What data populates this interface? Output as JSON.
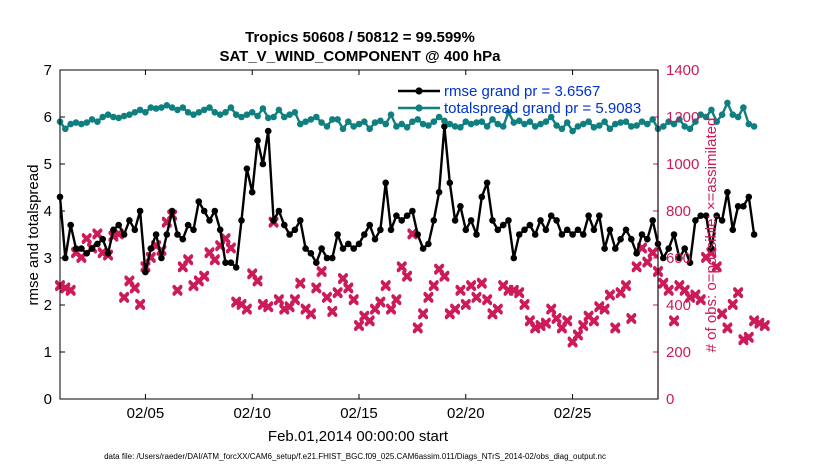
{
  "chart_data": {
    "type": "line",
    "title": "Tropics 50608 / 50812 = 99.599%",
    "subtitle": "SAT_V_WIND_COMPONENT @ 400 hPa",
    "xlabel": "Feb.01,2014 00:00:00 start",
    "ylabel": "rmse and totalspread",
    "y2label": "# of obs: o=possible; ×=assimilated",
    "footnote": "data file: /Users/raeder/DAI/ATM_forcXX/CAM6_setup/f.e21.FHIST_BGC.f09_025.CAM6assim.011/Diags_NTrS_2014-02/obs_diag_output.nc",
    "x_ticks": [
      "02/05",
      "02/10",
      "02/15",
      "02/20",
      "02/25"
    ],
    "x_tick_days": [
      5,
      10,
      15,
      20,
      25
    ],
    "xlim_days": [
      1,
      29
    ],
    "ylim": [
      0,
      7
    ],
    "y_ticks": [
      "0",
      "1",
      "2",
      "3",
      "4",
      "5",
      "6",
      "7"
    ],
    "y2lim": [
      0,
      1400
    ],
    "y2_ticks": [
      "0",
      "200",
      "400",
      "600",
      "800",
      "1000",
      "1200",
      "1400"
    ],
    "grid": false,
    "legend_position": "top-right",
    "colors": {
      "rmse": "#000000",
      "spread": "#0f7f7f",
      "obs": "#cc1a5a",
      "legend_text": "#0033cc",
      "axis": "#000000"
    },
    "series": [
      {
        "name": "rmse grand pr = 3.6567",
        "axis": "left",
        "start_day": 1.0,
        "step_days": 0.25,
        "values": [
          4.3,
          3.0,
          3.7,
          3.2,
          3.2,
          3.1,
          3.2,
          3.3,
          3.4,
          3.1,
          3.6,
          3.7,
          3.5,
          3.8,
          3.6,
          4.0,
          2.7,
          3.2,
          3.5,
          3.0,
          3.5,
          4.0,
          3.5,
          3.4,
          3.7,
          3.6,
          4.2,
          4.0,
          3.8,
          4.0,
          3.6,
          2.9,
          2.9,
          2.8,
          3.8,
          4.9,
          4.4,
          5.5,
          5.0,
          5.7,
          3.8,
          4.0,
          3.7,
          3.5,
          3.6,
          3.8,
          3.2,
          3.1,
          2.9,
          3.2,
          3.0,
          3.0,
          3.5,
          3.2,
          3.3,
          3.2,
          3.3,
          3.5,
          3.7,
          3.4,
          3.6,
          4.6,
          3.6,
          3.9,
          3.8,
          3.9,
          4.0,
          3.5,
          3.2,
          3.3,
          3.8,
          4.4,
          5.8,
          4.6,
          3.8,
          4.1,
          3.6,
          3.8,
          3.5,
          4.3,
          4.6,
          3.8,
          3.6,
          3.7,
          3.8,
          3.0,
          3.5,
          3.6,
          3.7,
          3.5,
          3.8,
          3.6,
          3.9,
          3.8,
          3.5,
          3.6,
          3.5,
          3.6,
          3.5,
          3.9,
          3.6,
          3.9,
          3.2,
          3.6,
          3.2,
          3.4,
          3.6,
          3.4,
          3.1,
          3.5,
          3.4,
          3.8,
          3.3,
          3.0,
          3.2,
          3.5,
          3.0,
          3.2,
          2.9,
          3.8,
          3.9,
          3.9,
          3.2,
          3.9,
          3.8,
          4.4,
          3.6,
          4.1,
          4.1,
          4.3,
          3.5
        ],
        "marker": "circle"
      },
      {
        "name": "totalspread grand pr = 5.9083",
        "axis": "left",
        "start_day": 1.0,
        "step_days": 0.25,
        "values": [
          5.9,
          5.75,
          5.85,
          5.88,
          5.85,
          5.88,
          5.95,
          5.9,
          6.0,
          6.05,
          6.0,
          5.98,
          6.02,
          6.05,
          6.1,
          6.15,
          6.1,
          6.2,
          6.18,
          6.2,
          6.25,
          6.2,
          6.15,
          6.2,
          6.1,
          6.05,
          6.1,
          6.15,
          6.2,
          6.1,
          6.05,
          6.1,
          6.2,
          6.05,
          6.0,
          6.05,
          6.1,
          6.02,
          6.18,
          5.98,
          6.0,
          6.15,
          6.0,
          6.05,
          6.1,
          5.85,
          5.9,
          5.95,
          6.0,
          5.88,
          5.8,
          5.95,
          5.95,
          5.75,
          5.9,
          5.8,
          5.85,
          5.9,
          5.75,
          5.88,
          5.92,
          5.85,
          6.05,
          5.8,
          5.85,
          5.78,
          5.9,
          5.95,
          5.85,
          5.82,
          5.9,
          6.0,
          5.92,
          5.85,
          5.8,
          5.78,
          5.9,
          5.85,
          5.88,
          5.9,
          5.8,
          5.95,
          5.85,
          5.8,
          6.1,
          5.88,
          5.92,
          5.85,
          5.9,
          5.8,
          5.85,
          5.9,
          6.0,
          5.82,
          5.75,
          5.88,
          5.7,
          5.8,
          5.85,
          5.9,
          5.78,
          5.82,
          5.9,
          5.75,
          5.85,
          5.88,
          5.9,
          5.8,
          5.82,
          5.9,
          5.85,
          5.95,
          5.75,
          5.8,
          5.9,
          5.85,
          5.95,
          5.8,
          5.75,
          5.9,
          6.05,
          6.0,
          6.15,
          5.9,
          6.05,
          6.3,
          6.05,
          6.0,
          6.2,
          5.85,
          5.8
        ],
        "marker": "circle"
      },
      {
        "name": "possible obs",
        "axis": "right",
        "start_day": 1.0,
        "step_days": 0.25,
        "values": [
          480,
          470,
          460,
          620,
          600,
          680,
          640,
          700,
          620,
          610,
          690,
          700,
          430,
          500,
          470,
          400,
          560,
          600,
          650,
          630,
          750,
          780,
          460,
          560,
          590,
          480,
          500,
          520,
          620,
          590,
          650,
          680,
          640,
          410,
          400,
          380,
          530,
          500,
          400,
          390,
          750,
          420,
          380,
          390,
          420,
          490,
          380,
          360,
          470,
          540,
          430,
          370,
          450,
          510,
          470,
          420,
          310,
          350,
          330,
          380,
          410,
          480,
          380,
          420,
          560,
          520,
          700,
          300,
          360,
          430,
          480,
          550,
          520,
          360,
          380,
          460,
          400,
          480,
          430,
          490,
          420,
          360,
          380,
          480,
          460,
          460,
          450,
          400,
          330,
          300,
          310,
          320,
          380,
          340,
          300,
          330,
          240,
          270,
          310,
          350,
          330,
          390,
          380,
          440,
          300,
          450,
          480,
          340,
          560,
          640,
          580,
          620,
          540,
          490,
          460,
          330,
          480,
          460,
          430,
          440,
          420,
          600,
          620,
          560,
          360,
          300,
          400,
          450,
          250,
          260,
          330,
          320,
          310
        ],
        "marker": "x"
      },
      {
        "name": "assimilated obs",
        "axis": "right",
        "start_day": 1.0,
        "step_days": 0.25,
        "values": [
          485,
          475,
          465,
          625,
          605,
          685,
          645,
          705,
          625,
          615,
          695,
          705,
          435,
          505,
          475,
          405,
          565,
          605,
          655,
          635,
          755,
          785,
          465,
          565,
          595,
          485,
          505,
          525,
          625,
          595,
          655,
          685,
          645,
          415,
          405,
          385,
          535,
          505,
          405,
          395,
          755,
          425,
          385,
          395,
          425,
          495,
          385,
          365,
          475,
          545,
          435,
          375,
          455,
          515,
          475,
          425,
          315,
          355,
          335,
          385,
          415,
          485,
          385,
          425,
          565,
          525,
          705,
          305,
          365,
          435,
          485,
          555,
          525,
          365,
          385,
          465,
          405,
          485,
          435,
          495,
          425,
          365,
          385,
          485,
          465,
          465,
          455,
          405,
          335,
          305,
          315,
          325,
          385,
          345,
          305,
          335,
          245,
          275,
          315,
          355,
          335,
          395,
          385,
          445,
          305,
          455,
          485,
          345,
          565,
          645,
          585,
          625,
          545,
          495,
          465,
          335,
          485,
          465,
          435,
          445,
          425,
          605,
          625,
          565,
          365,
          305,
          405,
          455,
          255,
          265,
          335,
          325,
          315
        ],
        "marker": "x"
      }
    ]
  }
}
